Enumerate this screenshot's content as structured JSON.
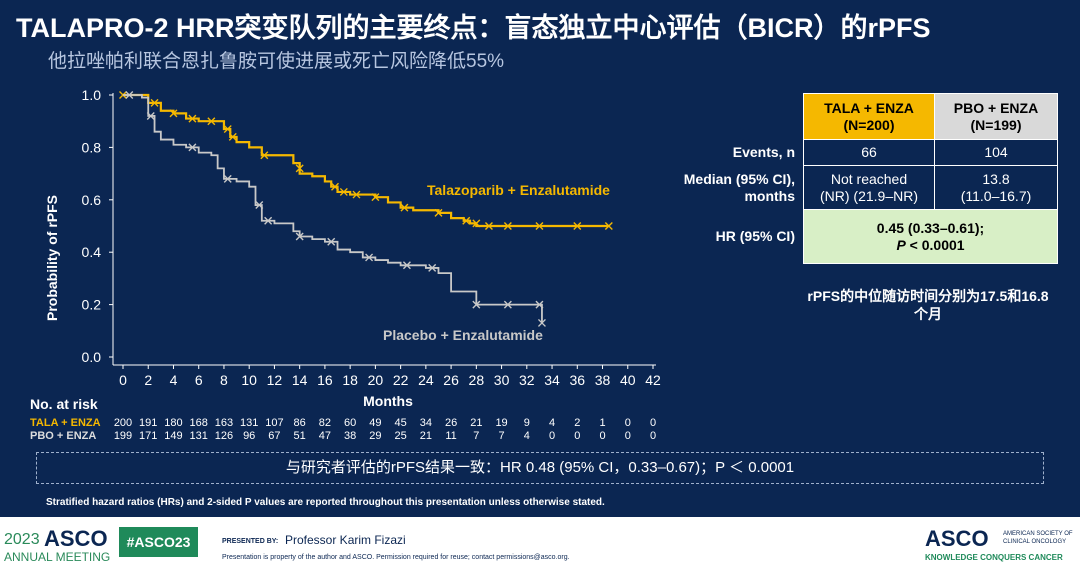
{
  "title": "TALAPRO-2 HRR突变队列的主要终点：盲态独立中心评估（BICR）的rPFS",
  "subtitle": "他拉唑帕利联合恩扎鲁胺可使进展或死亡风险降低55%",
  "chart_data": {
    "type": "line",
    "xlabel": "Months",
    "ylabel": "Probability of rPFS",
    "xlim": [
      0,
      42
    ],
    "ylim": [
      0,
      1.0
    ],
    "xticks": [
      "0",
      "2",
      "4",
      "6",
      "8",
      "10",
      "12",
      "14",
      "16",
      "18",
      "20",
      "22",
      "24",
      "26",
      "28",
      "30",
      "32",
      "34",
      "36",
      "38",
      "40",
      "42"
    ],
    "yticks": [
      "0.0",
      "0.2",
      "0.4",
      "0.6",
      "0.8",
      "1.0"
    ],
    "series": [
      {
        "name": "Talazoparib + Enzalutamide",
        "color": "#f5b800",
        "points": [
          [
            0,
            1.0
          ],
          [
            1.5,
            1.0
          ],
          [
            2,
            0.97
          ],
          [
            3,
            0.94
          ],
          [
            4,
            0.93
          ],
          [
            5,
            0.91
          ],
          [
            6,
            0.9
          ],
          [
            8,
            0.87
          ],
          [
            8.5,
            0.84
          ],
          [
            9,
            0.82
          ],
          [
            10,
            0.8
          ],
          [
            11,
            0.77
          ],
          [
            13.5,
            0.74
          ],
          [
            14,
            0.7
          ],
          [
            15,
            0.69
          ],
          [
            16,
            0.67
          ],
          [
            16.5,
            0.65
          ],
          [
            17,
            0.63
          ],
          [
            18,
            0.62
          ],
          [
            20,
            0.61
          ],
          [
            21,
            0.59
          ],
          [
            22,
            0.57
          ],
          [
            23,
            0.56
          ],
          [
            25,
            0.55
          ],
          [
            26,
            0.53
          ],
          [
            27,
            0.52
          ],
          [
            27.5,
            0.51
          ],
          [
            28,
            0.5
          ],
          [
            38.5,
            0.5
          ]
        ],
        "censor": [
          [
            0,
            1.0
          ],
          [
            2.5,
            0.97
          ],
          [
            4,
            0.93
          ],
          [
            5.5,
            0.91
          ],
          [
            7,
            0.9
          ],
          [
            8.3,
            0.87
          ],
          [
            8.7,
            0.84
          ],
          [
            11.2,
            0.77
          ],
          [
            14,
            0.72
          ],
          [
            16.8,
            0.65
          ],
          [
            17.5,
            0.63
          ],
          [
            18.5,
            0.62
          ],
          [
            20,
            0.61
          ],
          [
            22.3,
            0.57
          ],
          [
            25,
            0.55
          ],
          [
            27.2,
            0.52
          ],
          [
            28,
            0.51
          ],
          [
            29,
            0.5
          ],
          [
            30.5,
            0.5
          ],
          [
            33,
            0.5
          ],
          [
            36,
            0.5
          ],
          [
            38.5,
            0.5
          ]
        ]
      },
      {
        "name": "Placebo + Enzalutamide",
        "color": "#c8c8c8",
        "points": [
          [
            0,
            1.0
          ],
          [
            1.5,
            0.99
          ],
          [
            2,
            0.92
          ],
          [
            2.5,
            0.86
          ],
          [
            3,
            0.83
          ],
          [
            4,
            0.81
          ],
          [
            5,
            0.8
          ],
          [
            6,
            0.78
          ],
          [
            7,
            0.77
          ],
          [
            7.5,
            0.72
          ],
          [
            8,
            0.68
          ],
          [
            9,
            0.67
          ],
          [
            10,
            0.65
          ],
          [
            10.5,
            0.58
          ],
          [
            11,
            0.52
          ],
          [
            12,
            0.51
          ],
          [
            13.5,
            0.48
          ],
          [
            14,
            0.46
          ],
          [
            15,
            0.45
          ],
          [
            16,
            0.44
          ],
          [
            17,
            0.41
          ],
          [
            18,
            0.4
          ],
          [
            19,
            0.38
          ],
          [
            20,
            0.37
          ],
          [
            21,
            0.36
          ],
          [
            22,
            0.35
          ],
          [
            24,
            0.34
          ],
          [
            25,
            0.32
          ],
          [
            26,
            0.25
          ],
          [
            27,
            0.25
          ],
          [
            28,
            0.2
          ],
          [
            33,
            0.2
          ],
          [
            33.2,
            0.13
          ]
        ],
        "censor": [
          [
            0.5,
            1.0
          ],
          [
            2.2,
            0.92
          ],
          [
            5.5,
            0.8
          ],
          [
            8.3,
            0.68
          ],
          [
            10.8,
            0.58
          ],
          [
            11.5,
            0.52
          ],
          [
            14,
            0.46
          ],
          [
            16.5,
            0.44
          ],
          [
            19.5,
            0.38
          ],
          [
            22.5,
            0.35
          ],
          [
            24.5,
            0.34
          ],
          [
            28,
            0.2
          ],
          [
            30.5,
            0.2
          ],
          [
            33,
            0.2
          ],
          [
            33.2,
            0.13
          ]
        ]
      }
    ],
    "annotations": [
      "Talazoparib + Enzalutamide",
      "Placebo + Enzalutamide"
    ]
  },
  "risk": {
    "header": "No. at risk",
    "rows": [
      {
        "label": "TALA + ENZA",
        "values": [
          "200",
          "191",
          "180",
          "168",
          "163",
          "131",
          "107",
          "86",
          "82",
          "60",
          "49",
          "45",
          "34",
          "26",
          "21",
          "19",
          "9",
          "4",
          "2",
          "1",
          "0",
          "0"
        ]
      },
      {
        "label": "PBO + ENZA",
        "values": [
          "199",
          "171",
          "149",
          "131",
          "126",
          "96",
          "67",
          "51",
          "47",
          "38",
          "29",
          "25",
          "21",
          "11",
          "7",
          "7",
          "4",
          "0",
          "0",
          "0",
          "0",
          "0"
        ]
      }
    ]
  },
  "table": {
    "col1": "TALA + ENZA",
    "col1n": "(N=200)",
    "col2": "PBO + ENZA",
    "col2n": "(N=199)",
    "events_label": "Events, n",
    "events1": "66",
    "events2": "104",
    "median_label1": "Median (95% CI),",
    "median_label2": "months",
    "median1a": "Not reached",
    "median1b": "(NR) (21.9–NR)",
    "median2a": "13.8",
    "median2b": "(11.0–16.7)",
    "hr_label": "HR (95% CI)",
    "hr1": "0.45 (0.33–0.61);",
    "hr2p": "P",
    "hr2": " < 0.0001",
    "followup": "rPFS的中位随访时间分别为17.5和16.8个月"
  },
  "note": "与研究者评估的rPFS结果一致：HR 0.48 (95% CI，0.33–0.67)；P ＜ 0.0001",
  "footnote": "Stratified hazard ratios (HRs) and 2-sided P values are reported throughout this presentation unless otherwise stated.",
  "footer": {
    "year": "2023",
    "asco": "ASCO",
    "meeting": "ANNUAL MEETING",
    "hashtag": "#ASCO23",
    "presented_by": "PRESENTED BY:",
    "presenter": "Professor Karim Fizazi",
    "disclaimer": "Presentation is property of the author and ASCO. Permission required for reuse; contact permissions@asco.org.",
    "logo": "ASCO",
    "society1": "AMERICAN SOCIETY OF",
    "society2": "CLINICAL ONCOLOGY",
    "tagline": "KNOWLEDGE CONQUERS CANCER"
  }
}
